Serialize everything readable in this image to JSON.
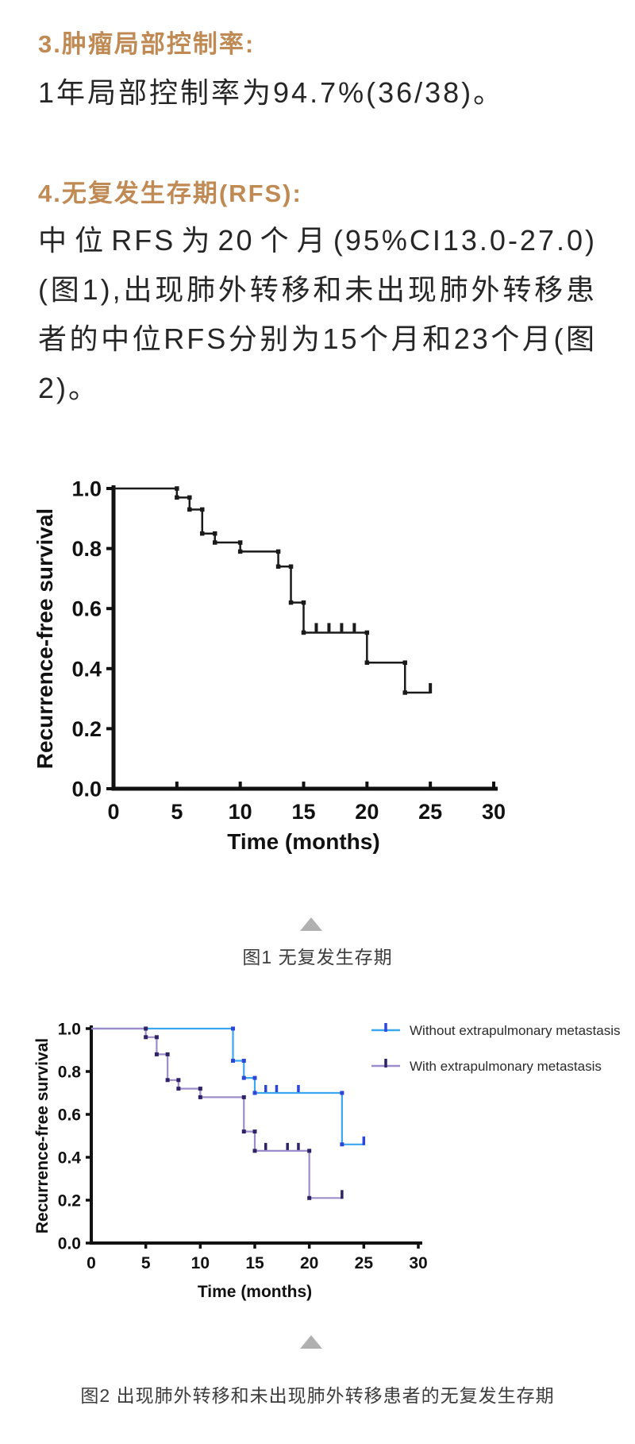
{
  "content": {
    "section3": {
      "heading": "3.肿瘤局部控制率:",
      "body": "1年局部控制率为94.7%(36/38)。"
    },
    "section4": {
      "heading": "4.无复发生存期(RFS):",
      "body": "中位RFS为20个月(95%CI13.0-27.0)(图1),出现肺外转移和未出现肺外转移患者的中位RFS分别为15个月和23个月(图2)。"
    },
    "figure1_caption": "图1 无复发生存期",
    "figure2_caption": "图2 出现肺外转移和未出现肺外转移患者的无复发生存期"
  },
  "colors": {
    "heading_accent": "#c08a54",
    "body_text": "#262626",
    "caption_text": "#3c3c3c",
    "triangle_gray": "#b0b0b0",
    "axis_black": "#111111",
    "km_black": "#1a1a1a",
    "km_blue": "#3aa7f0",
    "km_blue_dark": "#2b46d9",
    "km_purple": "#9d8ccc",
    "km_purple_dark": "#2f2366"
  },
  "chart_data": [
    {
      "type": "line",
      "subtype": "kaplan-meier-step",
      "title": "图1 无复发生存期",
      "xlabel": "Time (months)",
      "ylabel": "Recurrence-free survival",
      "xlim": [
        0,
        30
      ],
      "ylim": [
        0.0,
        1.0
      ],
      "xticks": [
        0,
        5,
        10,
        15,
        20,
        25,
        30
      ],
      "yticks": [
        0.0,
        0.2,
        0.4,
        0.6,
        0.8,
        1.0
      ],
      "ytick_labels": [
        "0.0",
        "0.2",
        "0.4",
        "0.6",
        "0.8",
        "1.0"
      ],
      "grid": false,
      "legend_position": "none",
      "series": [
        {
          "name": "",
          "color": "#1a1a1a",
          "censor_color": "#1a1a1a",
          "steps": [
            [
              0,
              1.0
            ],
            [
              5,
              0.97
            ],
            [
              6,
              0.93
            ],
            [
              7,
              0.85
            ],
            [
              8,
              0.82
            ],
            [
              10,
              0.79
            ],
            [
              13,
              0.74
            ],
            [
              14,
              0.62
            ],
            [
              15,
              0.52
            ],
            [
              20,
              0.42
            ],
            [
              23,
              0.32
            ]
          ],
          "censors": [
            [
              16,
              0.52
            ],
            [
              17,
              0.52
            ],
            [
              18,
              0.52
            ],
            [
              19,
              0.52
            ]
          ],
          "end_time": 25,
          "end_censored": true
        }
      ]
    },
    {
      "type": "line",
      "subtype": "kaplan-meier-step",
      "title": "图2 出现肺外转移和未出现肺外转移患者的无复发生存期",
      "xlabel": "Time (months)",
      "ylabel": "Recurrence-free survival",
      "xlim": [
        0,
        30
      ],
      "ylim": [
        0.0,
        1.0
      ],
      "xticks": [
        0,
        5,
        10,
        15,
        20,
        25,
        30
      ],
      "yticks": [
        0.0,
        0.2,
        0.4,
        0.6,
        0.8,
        1.0
      ],
      "ytick_labels": [
        "0.0",
        "0.2",
        "0.4",
        "0.6",
        "0.8",
        "1.0"
      ],
      "grid": false,
      "legend_position": "upper right",
      "series": [
        {
          "name": "Without extrapulmonary metastasis",
          "color": "#3aa7f0",
          "censor_color": "#2b46d9",
          "steps": [
            [
              0,
              1.0
            ],
            [
              13,
              0.85
            ],
            [
              14,
              0.77
            ],
            [
              15,
              0.7
            ],
            [
              23,
              0.46
            ]
          ],
          "censors": [
            [
              16,
              0.7
            ],
            [
              17,
              0.7
            ],
            [
              19,
              0.7
            ]
          ],
          "end_time": 25,
          "end_censored": true
        },
        {
          "name": "With extrapulmonary metastasis",
          "color": "#9d8ccc",
          "censor_color": "#2f2366",
          "steps": [
            [
              0,
              1.0
            ],
            [
              5,
              0.96
            ],
            [
              6,
              0.88
            ],
            [
              7,
              0.76
            ],
            [
              8,
              0.72
            ],
            [
              10,
              0.68
            ],
            [
              14,
              0.52
            ],
            [
              15,
              0.43
            ],
            [
              20,
              0.21
            ]
          ],
          "censors": [
            [
              16,
              0.43
            ],
            [
              18,
              0.43
            ],
            [
              19,
              0.43
            ]
          ],
          "end_time": 23,
          "end_censored": true
        }
      ]
    }
  ]
}
